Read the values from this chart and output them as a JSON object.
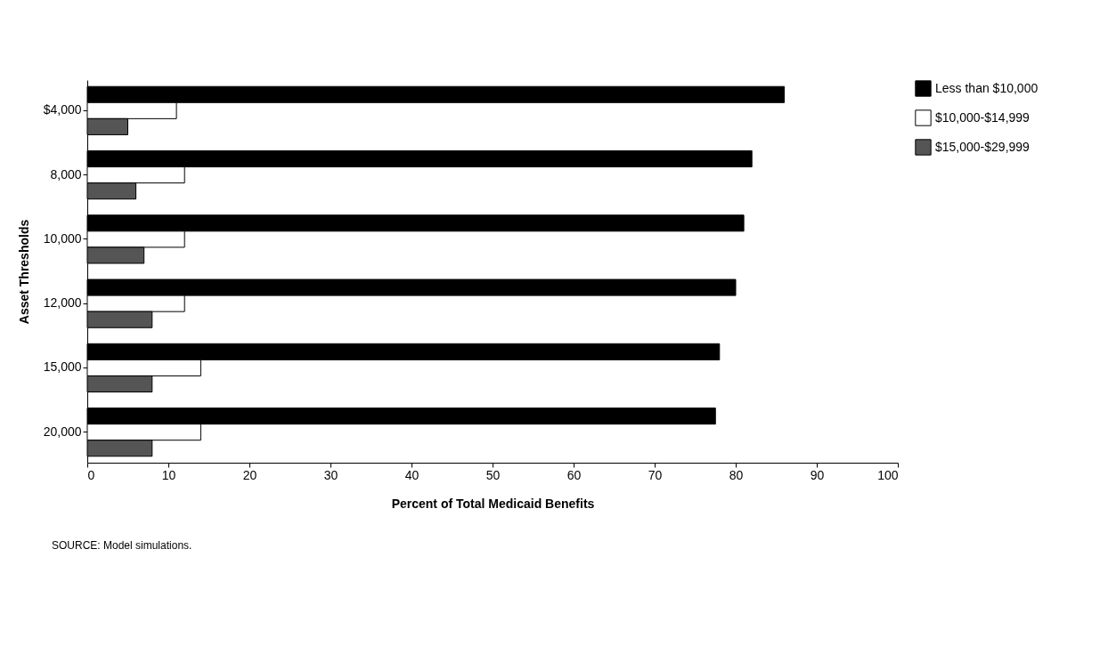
{
  "chart_data": {
    "type": "bar",
    "orientation": "horizontal",
    "xlabel": "Percent of Total Medicaid Benefits",
    "ylabel": "Asset Thresholds",
    "categories": [
      "$4,000",
      "8,000",
      "10,000",
      "12,000",
      "15,000",
      "20,000"
    ],
    "series": [
      {
        "name": "Less than $10,000",
        "color": "#000000",
        "values": [
          86,
          82,
          81,
          80,
          78,
          77.5
        ]
      },
      {
        "name": "$10,000-$14,999",
        "color": "#ffffff",
        "values": [
          11,
          12,
          12,
          12,
          14,
          14
        ]
      },
      {
        "name": "$15,000-$29,999",
        "color": "#555555",
        "values": [
          5,
          6,
          7,
          8,
          8,
          8
        ]
      }
    ],
    "xlim": [
      0,
      100
    ],
    "xticks": [
      0,
      10,
      20,
      30,
      40,
      50,
      60,
      70,
      80,
      90,
      100
    ],
    "grid": false,
    "legend": "top right",
    "annotations": [
      "SOURCE: Model simulations."
    ]
  }
}
